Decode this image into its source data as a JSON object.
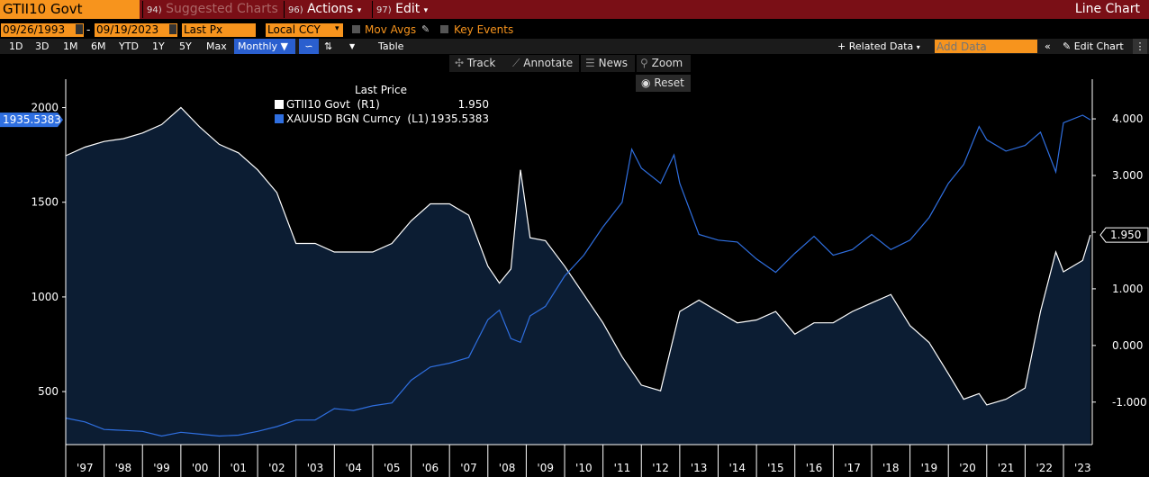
{
  "toolbar": {
    "security": "GTII10 Govt",
    "suggested_num": "94)",
    "suggested_label": "Suggested Charts",
    "actions_num": "96)",
    "actions_label": "Actions",
    "edit_num": "97)",
    "edit_label": "Edit",
    "view_title": "Line Chart"
  },
  "settings": {
    "start_date": "09/26/1993",
    "end_date": "09/19/2023",
    "field": "Last Px",
    "currency": "Local CCY",
    "mov_avgs": "Mov Avgs",
    "key_events": "Key Events"
  },
  "periods": [
    "1D",
    "3D",
    "1M",
    "6M",
    "YTD",
    "1Y",
    "5Y",
    "Max"
  ],
  "frequency": "Monthly",
  "table_label": "Table",
  "related_data": "Related Data",
  "add_data_placeholder": "Add Data",
  "edit_chart": "Edit Chart",
  "tools": {
    "track": "Track",
    "annotate": "Annotate",
    "news": "News",
    "zoom": "Zoom",
    "reset": "Reset"
  },
  "colors": {
    "gtii": "#ffffff",
    "gold": "#2f6fe0",
    "area": "#0c1d33",
    "toolbar": "#7a0f16",
    "accent": "#f7941d"
  },
  "legend": {
    "title": "Last Price",
    "items": [
      {
        "name": "GTII10 Govt  (R1)",
        "value": "1.950",
        "color": "#ffffff"
      },
      {
        "name": "XAUUSD BGN Curncy  (L1)",
        "value": "1935.5383",
        "color": "#2f6fe0"
      }
    ]
  },
  "chart_data": {
    "type": "line",
    "x_ticks": [
      "'97",
      "'98",
      "'99",
      "'00",
      "'01",
      "'02",
      "'03",
      "'04",
      "'05",
      "'06",
      "'07",
      "'08",
      "'09",
      "'10",
      "'11",
      "'12",
      "'13",
      "'14",
      "'15",
      "'16",
      "'17",
      "'18",
      "'19",
      "'20",
      "'21",
      "'22",
      "'23"
    ],
    "x_tick_years": [
      1997,
      1998,
      1999,
      2000,
      2001,
      2002,
      2003,
      2004,
      2005,
      2006,
      2007,
      2008,
      2009,
      2010,
      2011,
      2012,
      2013,
      2014,
      2015,
      2016,
      2017,
      2018,
      2019,
      2020,
      2021,
      2022,
      2023
    ],
    "x_range": [
      1997.0,
      2023.75
    ],
    "left_axis": {
      "series": "XAUUSD BGN Curncy",
      "range": [
        220,
        2150
      ],
      "ticks": [
        500,
        1000,
        1500,
        2000
      ],
      "last_label": "1935.5383"
    },
    "right_axis": {
      "series": "GTII10 Govt",
      "range": [
        -1.75,
        4.7
      ],
      "ticks": [
        "4.000",
        "3.000",
        "2.000",
        "1.000",
        "0.000",
        "-1.000"
      ],
      "tick_values": [
        4,
        3,
        2,
        1,
        0,
        -1
      ],
      "last_label": "1.950"
    },
    "series": [
      {
        "name": "GTII10 Govt",
        "axis": "right",
        "style": "area",
        "x": [
          1997.0,
          1997.5,
          1998.0,
          1998.5,
          1999.0,
          1999.5,
          2000.0,
          2000.5,
          2001.0,
          2001.5,
          2002.0,
          2002.5,
          2003.0,
          2003.5,
          2004.0,
          2004.5,
          2005.0,
          2005.5,
          2006.0,
          2006.5,
          2007.0,
          2007.5,
          2008.0,
          2008.3,
          2008.6,
          2008.85,
          2009.1,
          2009.5,
          2010.0,
          2010.5,
          2011.0,
          2011.5,
          2012.0,
          2012.5,
          2013.0,
          2013.5,
          2014.0,
          2014.5,
          2015.0,
          2015.5,
          2016.0,
          2016.5,
          2017.0,
          2017.5,
          2018.0,
          2018.5,
          2019.0,
          2019.5,
          2020.0,
          2020.4,
          2020.8,
          2021.0,
          2021.5,
          2022.0,
          2022.4,
          2022.8,
          2023.0,
          2023.5,
          2023.7
        ],
        "values": [
          3.35,
          3.5,
          3.6,
          3.65,
          3.75,
          3.9,
          4.2,
          3.85,
          3.55,
          3.4,
          3.1,
          2.7,
          1.8,
          1.8,
          1.65,
          1.65,
          1.65,
          1.8,
          2.2,
          2.5,
          2.5,
          2.3,
          1.4,
          1.1,
          1.35,
          3.1,
          1.9,
          1.85,
          1.4,
          0.9,
          0.4,
          -0.2,
          -0.7,
          -0.8,
          0.6,
          0.8,
          0.6,
          0.4,
          0.45,
          0.6,
          0.2,
          0.4,
          0.4,
          0.6,
          0.75,
          0.9,
          0.35,
          0.05,
          -0.5,
          -0.95,
          -0.85,
          -1.05,
          -0.95,
          -0.75,
          0.6,
          1.65,
          1.3,
          1.5,
          1.95
        ]
      },
      {
        "name": "XAUUSD BGN Curncy",
        "axis": "left",
        "style": "line",
        "x": [
          1997.0,
          1997.5,
          1998.0,
          1998.5,
          1999.0,
          1999.5,
          2000.0,
          2000.5,
          2001.0,
          2001.5,
          2002.0,
          2002.5,
          2003.0,
          2003.5,
          2004.0,
          2004.5,
          2005.0,
          2005.5,
          2006.0,
          2006.5,
          2007.0,
          2007.5,
          2008.0,
          2008.3,
          2008.6,
          2008.85,
          2009.1,
          2009.5,
          2010.0,
          2010.5,
          2011.0,
          2011.5,
          2011.75,
          2012.0,
          2012.5,
          2012.85,
          2013.0,
          2013.5,
          2014.0,
          2014.5,
          2015.0,
          2015.5,
          2016.0,
          2016.5,
          2017.0,
          2017.5,
          2018.0,
          2018.5,
          2019.0,
          2019.5,
          2020.0,
          2020.4,
          2020.8,
          2021.0,
          2021.5,
          2022.0,
          2022.4,
          2022.8,
          2023.0,
          2023.5,
          2023.7
        ],
        "values": [
          360,
          340,
          300,
          295,
          290,
          265,
          285,
          275,
          265,
          270,
          290,
          315,
          350,
          350,
          410,
          400,
          425,
          440,
          560,
          630,
          650,
          680,
          880,
          930,
          780,
          760,
          900,
          950,
          1110,
          1220,
          1370,
          1500,
          1780,
          1680,
          1600,
          1750,
          1600,
          1330,
          1300,
          1290,
          1200,
          1130,
          1230,
          1320,
          1220,
          1250,
          1330,
          1250,
          1300,
          1420,
          1600,
          1700,
          1900,
          1830,
          1770,
          1800,
          1870,
          1660,
          1920,
          1960,
          1935.5383
        ]
      }
    ]
  }
}
